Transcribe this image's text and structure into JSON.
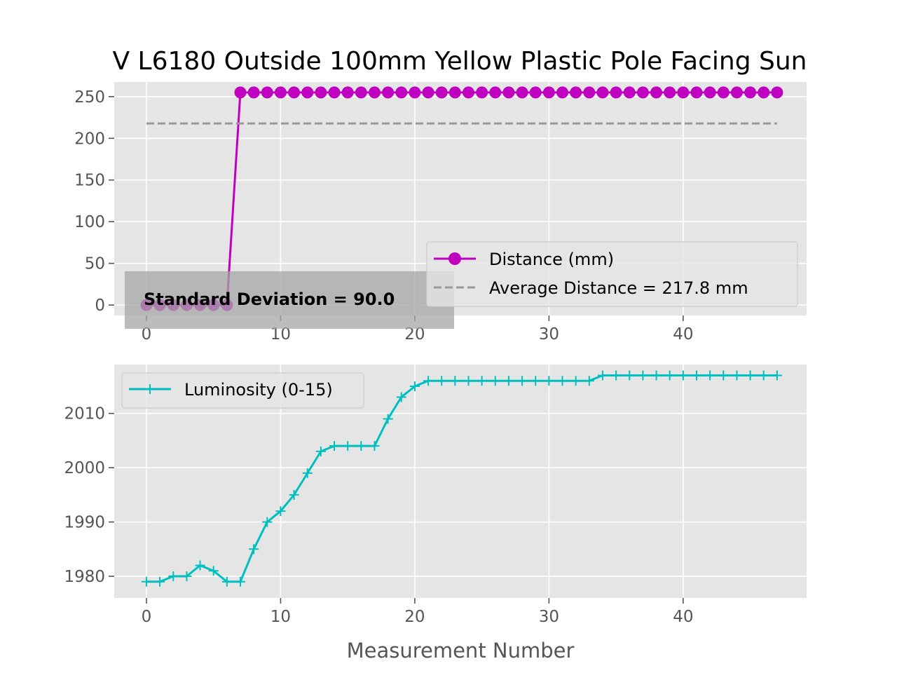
{
  "chart_data": [
    {
      "type": "line",
      "title": "V L6180 Outside 100mm Yellow Plastic Pole Facing Sun",
      "xlabel": "",
      "ylabel": "",
      "xlim": [
        -2.4,
        49.2
      ],
      "ylim": [
        -12.5,
        267.5
      ],
      "xticks": [
        0,
        10,
        20,
        30,
        40
      ],
      "yticks": [
        0,
        50,
        100,
        150,
        200,
        250
      ],
      "grid": true,
      "legend_position": "lower-right",
      "series": [
        {
          "name": "Distance (mm)",
          "color": "#bf00bf",
          "marker": "circle",
          "x": [
            0,
            1,
            2,
            3,
            4,
            5,
            6,
            7,
            8,
            9,
            10,
            11,
            12,
            13,
            14,
            15,
            16,
            17,
            18,
            19,
            20,
            21,
            22,
            23,
            24,
            25,
            26,
            27,
            28,
            29,
            30,
            31,
            32,
            33,
            34,
            35,
            36,
            37,
            38,
            39,
            40,
            41,
            42,
            43,
            44,
            45,
            46,
            47
          ],
          "y": [
            0,
            0,
            0,
            0,
            0,
            0,
            0,
            255,
            255,
            255,
            255,
            255,
            255,
            255,
            255,
            255,
            255,
            255,
            255,
            255,
            255,
            255,
            255,
            255,
            255,
            255,
            255,
            255,
            255,
            255,
            255,
            255,
            255,
            255,
            255,
            255,
            255,
            255,
            255,
            255,
            255,
            255,
            255,
            255,
            255,
            255,
            255,
            255
          ]
        },
        {
          "name": "Average Distance = 217.8 mm",
          "color": "#999999",
          "style": "dashed",
          "x": [
            0,
            47
          ],
          "y": [
            217.8,
            217.8
          ]
        }
      ],
      "annotation": {
        "text": "Standard Deviation = 90.0",
        "x": 0,
        "y": 0
      }
    },
    {
      "type": "line",
      "title": "",
      "xlabel": "Measurement Number",
      "ylabel": "",
      "xlim": [
        -2.4,
        49.2
      ],
      "ylim": [
        1976,
        2019
      ],
      "xticks": [
        0,
        10,
        20,
        30,
        40
      ],
      "yticks": [
        1980,
        1990,
        2000,
        2010
      ],
      "grid": true,
      "legend_position": "upper-left",
      "series": [
        {
          "name": "Luminosity (0-15)",
          "color": "#00bfbf",
          "marker": "plus",
          "x": [
            0,
            1,
            2,
            3,
            4,
            5,
            6,
            7,
            8,
            9,
            10,
            11,
            12,
            13,
            14,
            15,
            16,
            17,
            18,
            19,
            20,
            21,
            22,
            23,
            24,
            25,
            26,
            27,
            28,
            29,
            30,
            31,
            32,
            33,
            34,
            35,
            36,
            37,
            38,
            39,
            40,
            41,
            42,
            43,
            44,
            45,
            46,
            47
          ],
          "y": [
            1979,
            1979,
            1980,
            1980,
            1982,
            1981,
            1979,
            1979,
            1985,
            1990,
            1992,
            1995,
            1999,
            2003,
            2004,
            2004,
            2004,
            2004,
            2009,
            2013,
            2015,
            2016,
            2016,
            2016,
            2016,
            2016,
            2016,
            2016,
            2016,
            2016,
            2016,
            2016,
            2016,
            2016,
            2017,
            2017,
            2017,
            2017,
            2017,
            2017,
            2017,
            2017,
            2017,
            2017,
            2017,
            2017,
            2017,
            2017
          ]
        }
      ]
    }
  ]
}
